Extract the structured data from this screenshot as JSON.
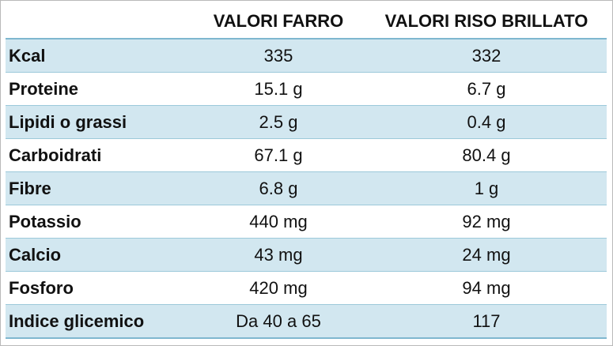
{
  "table": {
    "headers": [
      "",
      "VALORI FARRO",
      "VALORI RISO BRILLATO"
    ],
    "rows": [
      {
        "nutrient": "Kcal",
        "farro": "335",
        "riso": "332"
      },
      {
        "nutrient": "Proteine",
        "farro": "15.1 g",
        "riso": "6.7 g"
      },
      {
        "nutrient": "Lipidi o grassi",
        "farro": "2.5 g",
        "riso": "0.4 g"
      },
      {
        "nutrient": "Carboidrati",
        "farro": "67.1 g",
        "riso": "80.4 g"
      },
      {
        "nutrient": "Fibre",
        "farro": "6.8 g",
        "riso": "1 g"
      },
      {
        "nutrient": "Potassio",
        "farro": "440 mg",
        "riso": "92 mg"
      },
      {
        "nutrient": "Calcio",
        "farro": "43 mg",
        "riso": "24 mg"
      },
      {
        "nutrient": "Fosforo",
        "farro": "420 mg",
        "riso": "94 mg"
      },
      {
        "nutrient": "Indice glicemico",
        "farro": "Da 40 a 65",
        "riso": "117"
      }
    ]
  },
  "colors": {
    "band": "#d2e7f0",
    "rule": "#7fb7cf",
    "text": "#111111"
  }
}
